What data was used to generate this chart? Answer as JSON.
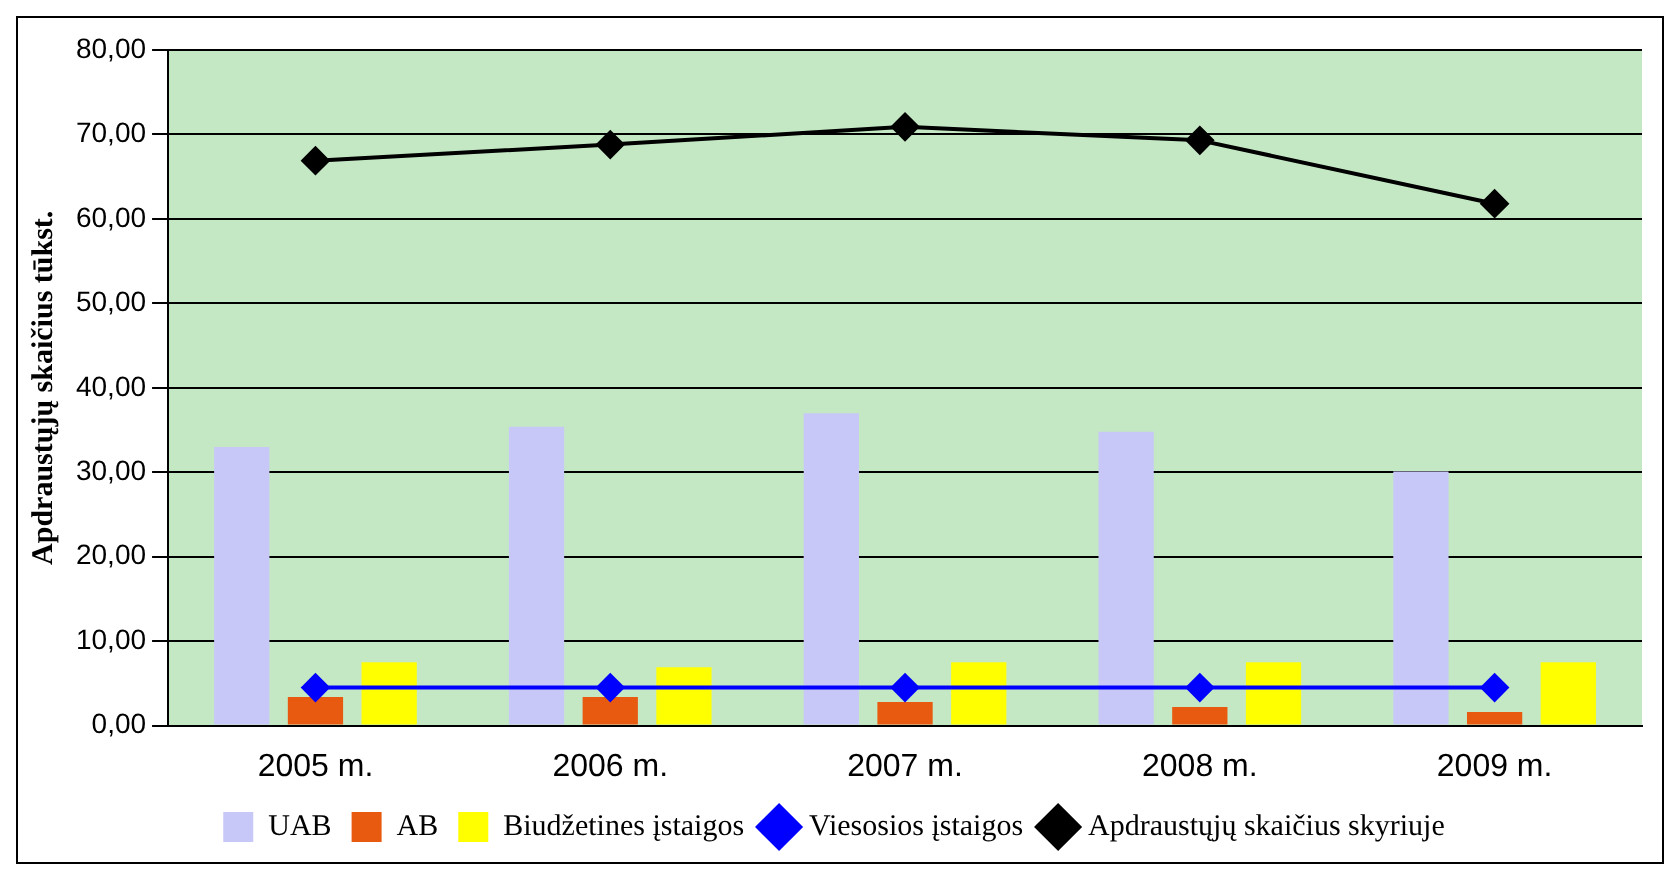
{
  "chart_data": {
    "type": "bar",
    "ylabel": "Apdraustųjų skaičius tūkst.",
    "categories": [
      "2005 m.",
      "2006 m.",
      "2007 m.",
      "2008 m.",
      "2009 m."
    ],
    "series": [
      {
        "name": "UAB",
        "color": "#c8c8f8",
        "values": [
          33.0,
          35.4,
          37.0,
          34.8,
          30.1
        ]
      },
      {
        "name": "AB",
        "color": "#e85a10",
        "values": [
          3.4,
          3.4,
          2.8,
          2.2,
          1.6
        ]
      },
      {
        "name": "Biudžetines įstaigos",
        "color": "#ffff00",
        "values": [
          7.5,
          6.9,
          7.5,
          7.5,
          7.5
        ]
      },
      {
        "name": "Viesosios įstaigos",
        "type": "line",
        "color": "#0000ff",
        "values": [
          4.5,
          4.5,
          4.5,
          4.5,
          4.5
        ]
      },
      {
        "name": "Apdraustųjų skaičius skyriuje",
        "type": "line",
        "color": "#000000",
        "values": [
          66.9,
          68.8,
          70.9,
          69.3,
          61.8
        ]
      }
    ],
    "ylim": [
      0,
      80
    ],
    "yticks": [
      {
        "value": 0,
        "label": "0,00"
      },
      {
        "value": 10,
        "label": "10,00"
      },
      {
        "value": 20,
        "label": "20,00"
      },
      {
        "value": 30,
        "label": "30,00"
      },
      {
        "value": 40,
        "label": "40,00"
      },
      {
        "value": 50,
        "label": "50,00"
      },
      {
        "value": 60,
        "label": "60,00"
      },
      {
        "value": 70,
        "label": "70,00"
      },
      {
        "value": 80,
        "label": "80,00"
      }
    ],
    "grid": "y",
    "legend": "bottom",
    "marker": "diamond",
    "line_style": "solid"
  }
}
